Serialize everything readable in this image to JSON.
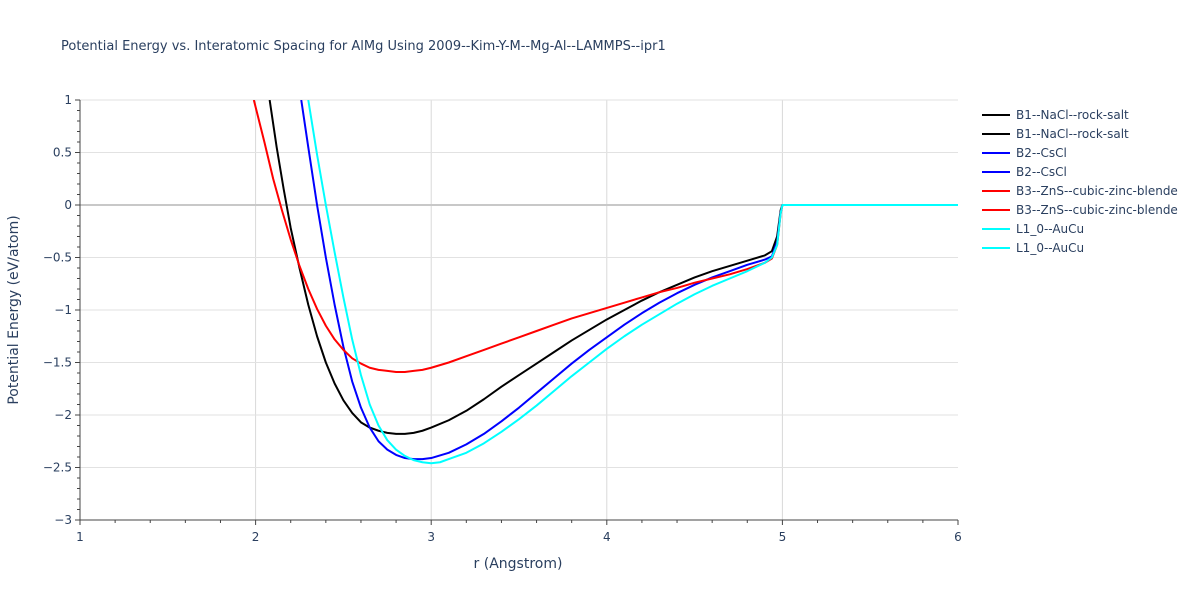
{
  "chart_data": {
    "type": "line",
    "title": "Potential Energy vs. Interatomic Spacing for AlMg Using 2009--Kim-Y-M--Mg-Al--LAMMPS--ipr1",
    "xlabel": "r (Angstrom)",
    "ylabel": "Potential Energy (eV/atom)",
    "xlim": [
      1,
      6
    ],
    "ylim": [
      -3,
      1
    ],
    "x_ticks": [
      1,
      2,
      3,
      4,
      5,
      6
    ],
    "x_tick_labels": [
      "1",
      "2",
      "3",
      "4",
      "5",
      "6"
    ],
    "y_ticks": [
      1,
      0.5,
      0,
      -0.5,
      -1,
      -1.5,
      -2,
      -2.5,
      -3
    ],
    "y_tick_labels": [
      "1",
      "0.5",
      "0",
      "−0.5",
      "−1",
      "−1.5",
      "−2",
      "−2.5",
      "−3"
    ],
    "grid": true,
    "legend_position": "right",
    "series": [
      {
        "name": "B1--NaCl--rock-salt",
        "color": "#000000",
        "x": [
          2.08,
          2.12,
          2.16,
          2.2,
          2.25,
          2.3,
          2.35,
          2.4,
          2.45,
          2.5,
          2.55,
          2.6,
          2.65,
          2.7,
          2.75,
          2.8,
          2.85,
          2.9,
          2.95,
          3.0,
          3.1,
          3.2,
          3.3,
          3.4,
          3.5,
          3.6,
          3.7,
          3.8,
          3.9,
          4.0,
          4.1,
          4.2,
          4.3,
          4.4,
          4.5,
          4.6,
          4.7,
          4.8,
          4.9,
          4.94,
          4.97,
          4.99,
          5.0,
          6.0
        ],
        "y": [
          1.0,
          0.55,
          0.15,
          -0.22,
          -0.6,
          -0.95,
          -1.25,
          -1.5,
          -1.7,
          -1.86,
          -1.98,
          -2.07,
          -2.12,
          -2.15,
          -2.17,
          -2.18,
          -2.18,
          -2.17,
          -2.15,
          -2.12,
          -2.05,
          -1.96,
          -1.85,
          -1.73,
          -1.62,
          -1.51,
          -1.4,
          -1.29,
          -1.19,
          -1.09,
          -1.0,
          -0.91,
          -0.83,
          -0.76,
          -0.69,
          -0.63,
          -0.58,
          -0.53,
          -0.48,
          -0.44,
          -0.3,
          -0.05,
          0.0,
          0.0
        ]
      },
      {
        "name": "B1--NaCl--rock-salt",
        "color": "#000000",
        "x": [],
        "y": []
      },
      {
        "name": "B2--CsCl",
        "color": "#0000ff",
        "x": [
          2.26,
          2.3,
          2.35,
          2.4,
          2.45,
          2.5,
          2.55,
          2.6,
          2.65,
          2.7,
          2.75,
          2.8,
          2.85,
          2.9,
          2.95,
          3.0,
          3.1,
          3.2,
          3.3,
          3.4,
          3.5,
          3.6,
          3.7,
          3.8,
          3.9,
          4.0,
          4.1,
          4.2,
          4.3,
          4.4,
          4.5,
          4.6,
          4.7,
          4.8,
          4.9,
          4.94,
          4.97,
          4.99,
          5.0,
          6.0
        ],
        "y": [
          1.0,
          0.55,
          0.0,
          -0.5,
          -0.95,
          -1.35,
          -1.68,
          -1.93,
          -2.12,
          -2.25,
          -2.33,
          -2.38,
          -2.41,
          -2.42,
          -2.42,
          -2.41,
          -2.36,
          -2.28,
          -2.18,
          -2.06,
          -1.93,
          -1.79,
          -1.65,
          -1.51,
          -1.38,
          -1.26,
          -1.14,
          -1.03,
          -0.93,
          -0.84,
          -0.76,
          -0.69,
          -0.63,
          -0.57,
          -0.52,
          -0.49,
          -0.35,
          -0.07,
          0.0,
          0.0
        ]
      },
      {
        "name": "B2--CsCl",
        "color": "#0000ff",
        "x": [],
        "y": []
      },
      {
        "name": "B3--ZnS--cubic-zinc-blende",
        "color": "#ff0000",
        "x": [
          1.99,
          2.05,
          2.1,
          2.15,
          2.2,
          2.25,
          2.3,
          2.35,
          2.4,
          2.45,
          2.5,
          2.55,
          2.6,
          2.65,
          2.7,
          2.75,
          2.8,
          2.85,
          2.9,
          2.95,
          3.0,
          3.1,
          3.2,
          3.3,
          3.4,
          3.5,
          3.6,
          3.7,
          3.8,
          3.9,
          4.0,
          4.1,
          4.2,
          4.3,
          4.4,
          4.5,
          4.6,
          4.7,
          4.8,
          4.9,
          4.94,
          4.97,
          4.99,
          5.0,
          6.0
        ],
        "y": [
          1.0,
          0.6,
          0.25,
          -0.05,
          -0.33,
          -0.58,
          -0.8,
          -0.99,
          -1.15,
          -1.28,
          -1.38,
          -1.46,
          -1.51,
          -1.55,
          -1.57,
          -1.58,
          -1.59,
          -1.59,
          -1.58,
          -1.57,
          -1.55,
          -1.5,
          -1.44,
          -1.38,
          -1.32,
          -1.26,
          -1.2,
          -1.14,
          -1.08,
          -1.03,
          -0.98,
          -0.93,
          -0.88,
          -0.83,
          -0.79,
          -0.74,
          -0.7,
          -0.66,
          -0.61,
          -0.55,
          -0.51,
          -0.38,
          -0.08,
          0.0,
          0.0
        ]
      },
      {
        "name": "B3--ZnS--cubic-zinc-blende",
        "color": "#ff0000",
        "x": [],
        "y": []
      },
      {
        "name": "L1_0--AuCu",
        "color": "#00ffff",
        "x": [
          2.3,
          2.35,
          2.4,
          2.45,
          2.5,
          2.55,
          2.6,
          2.65,
          2.7,
          2.75,
          2.8,
          2.85,
          2.9,
          2.95,
          3.0,
          3.05,
          3.1,
          3.2,
          3.3,
          3.4,
          3.5,
          3.6,
          3.7,
          3.8,
          3.9,
          4.0,
          4.1,
          4.2,
          4.3,
          4.4,
          4.5,
          4.6,
          4.7,
          4.8,
          4.9,
          4.94,
          4.97,
          4.99,
          5.0,
          6.0
        ],
        "y": [
          1.0,
          0.48,
          0.0,
          -0.45,
          -0.88,
          -1.28,
          -1.62,
          -1.9,
          -2.1,
          -2.24,
          -2.33,
          -2.39,
          -2.43,
          -2.45,
          -2.46,
          -2.45,
          -2.42,
          -2.36,
          -2.27,
          -2.16,
          -2.04,
          -1.91,
          -1.77,
          -1.63,
          -1.5,
          -1.37,
          -1.25,
          -1.14,
          -1.04,
          -0.94,
          -0.85,
          -0.77,
          -0.7,
          -0.63,
          -0.55,
          -0.5,
          -0.38,
          -0.08,
          0.0,
          0.0
        ]
      },
      {
        "name": "L1_0--AuCu",
        "color": "#00ffff",
        "x": [],
        "y": []
      }
    ]
  }
}
